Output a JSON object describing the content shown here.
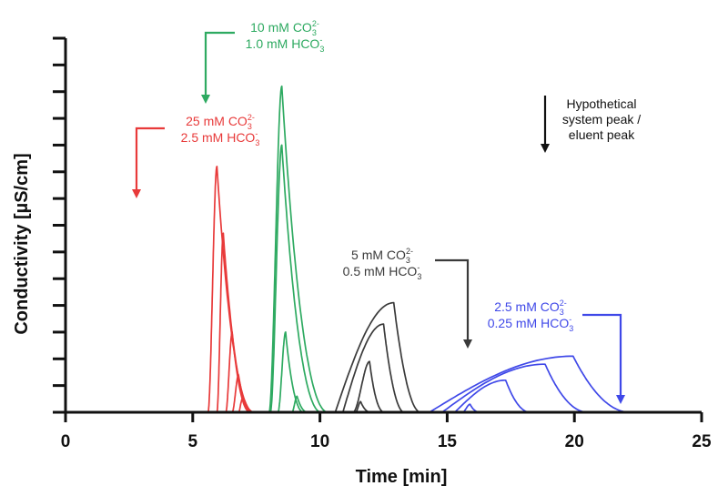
{
  "chart_data": {
    "type": "line",
    "title": "",
    "xlabel": "Time [min]",
    "ylabel": "Conductivity [µS/cm]",
    "xlim": [
      0,
      25
    ],
    "ylim": [
      0,
      14
    ],
    "x_ticks": [
      "0",
      "5",
      "10",
      "15",
      "20",
      "25"
    ],
    "y_tick_labels_shown": false,
    "baseline": 0,
    "series": [
      {
        "name": "25 mM CO3 / 2.5 mM HCO3",
        "color": "#e83a3a",
        "peaks": [
          {
            "start": 5.6,
            "apex": 5.95,
            "height": 9.2
          },
          {
            "start": 5.95,
            "apex": 6.2,
            "height": 6.7
          },
          {
            "start": 6.3,
            "apex": 6.55,
            "height": 3.0
          },
          {
            "start": 6.55,
            "apex": 6.8,
            "height": 1.4
          },
          {
            "start": 6.8,
            "apex": 6.95,
            "height": 0.5
          }
        ]
      },
      {
        "name": "10 mM CO3 / 1.0 mM HCO3",
        "color": "#2eaa61",
        "peaks": [
          {
            "start": 8.0,
            "apex": 8.5,
            "height": 12.2
          },
          {
            "start": 8.05,
            "apex": 8.5,
            "height": 10.0
          },
          {
            "start": 8.35,
            "apex": 8.65,
            "height": 3.0
          },
          {
            "start": 8.9,
            "apex": 9.1,
            "height": 0.6
          }
        ]
      },
      {
        "name": "5 mM CO3 / 0.5 mM HCO3",
        "color": "#3a3a3a",
        "peaks": [
          {
            "start": 10.6,
            "apex": 12.9,
            "height": 4.1
          },
          {
            "start": 10.9,
            "apex": 12.5,
            "height": 3.3
          },
          {
            "start": 11.3,
            "apex": 11.95,
            "height": 1.9
          },
          {
            "start": 11.4,
            "apex": 11.6,
            "height": 0.4
          }
        ]
      },
      {
        "name": "2.5 mM CO3 / 0.25 mM HCO3",
        "color": "#3f48e8",
        "peaks": [
          {
            "start": 14.3,
            "apex": 19.95,
            "height": 2.1
          },
          {
            "start": 14.8,
            "apex": 18.85,
            "height": 1.8
          },
          {
            "start": 15.3,
            "apex": 17.3,
            "height": 1.2
          },
          {
            "start": 15.6,
            "apex": 15.9,
            "height": 0.3
          }
        ]
      }
    ],
    "annotations": [
      {
        "lines": [
          {
            "text": "25 mM CO",
            "sub": "3",
            "sup": "2-"
          },
          {
            "text": "2.5 mM HCO",
            "sub": "3",
            "sup": "-"
          }
        ],
        "color": "#e83a3a"
      },
      {
        "lines": [
          {
            "text": "10 mM CO",
            "sub": "3",
            "sup": "2-"
          },
          {
            "text": "1.0 mM HCO",
            "sub": "3",
            "sup": "-"
          }
        ],
        "color": "#2eaa61"
      },
      {
        "lines": [
          {
            "text": "5 mM CO",
            "sub": "3",
            "sup": "2-"
          },
          {
            "text": "0.5 mM HCO",
            "sub": "3",
            "sup": "-"
          }
        ],
        "color": "#3a3a3a"
      },
      {
        "lines": [
          {
            "text": "2.5 mM CO",
            "sub": "3",
            "sup": "2-"
          },
          {
            "text": "0.25 mM HCO",
            "sub": "3",
            "sup": "-"
          }
        ],
        "color": "#3f48e8"
      },
      {
        "lines": [
          {
            "text": "Hypothetical"
          },
          {
            "text": "system peak /"
          },
          {
            "text": "eluent peak"
          }
        ],
        "color": "#111111"
      }
    ]
  }
}
